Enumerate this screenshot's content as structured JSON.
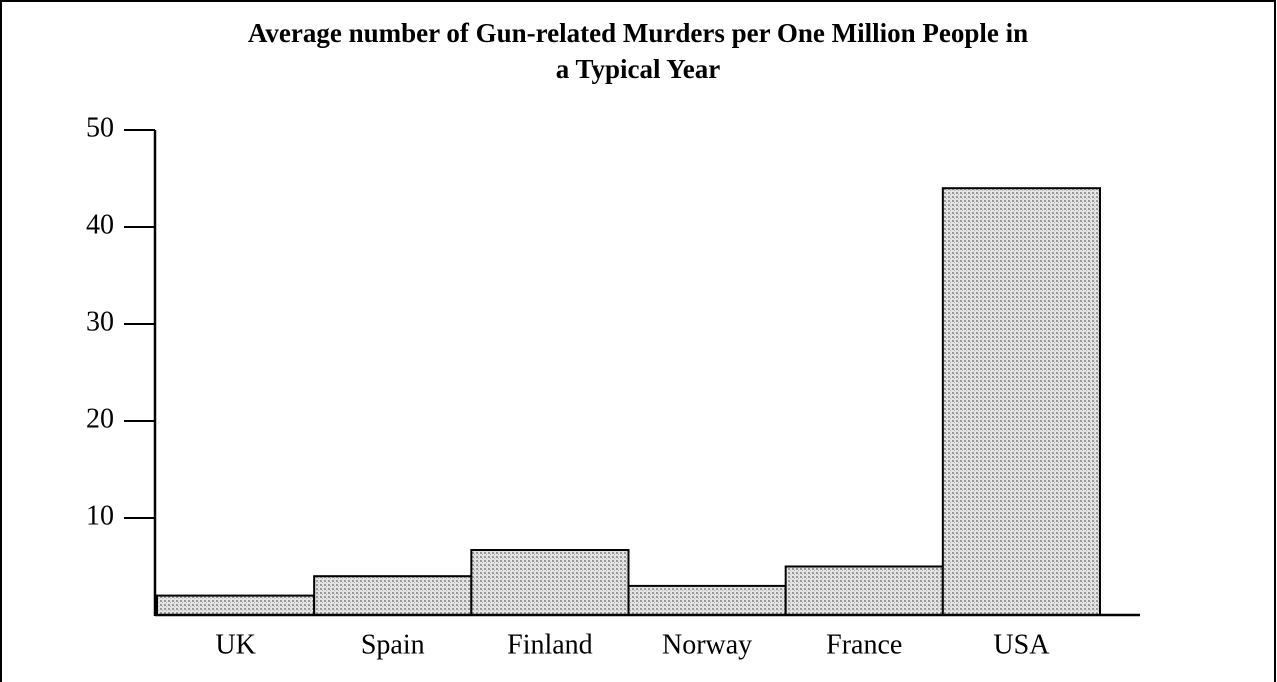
{
  "chart_data": {
    "type": "bar",
    "title": [
      "Average number of Gun-related Murders per One Million People in",
      "a Typical Year"
    ],
    "categories": [
      "UK",
      "Spain",
      "Finland",
      "Norway",
      "France",
      "USA"
    ],
    "values": [
      2,
      4,
      6.7,
      3,
      5,
      44
    ],
    "color": "#cccccc",
    "ylim": [
      0,
      50
    ],
    "yticks": [
      10,
      20,
      30,
      40,
      50
    ],
    "grid": false
  }
}
